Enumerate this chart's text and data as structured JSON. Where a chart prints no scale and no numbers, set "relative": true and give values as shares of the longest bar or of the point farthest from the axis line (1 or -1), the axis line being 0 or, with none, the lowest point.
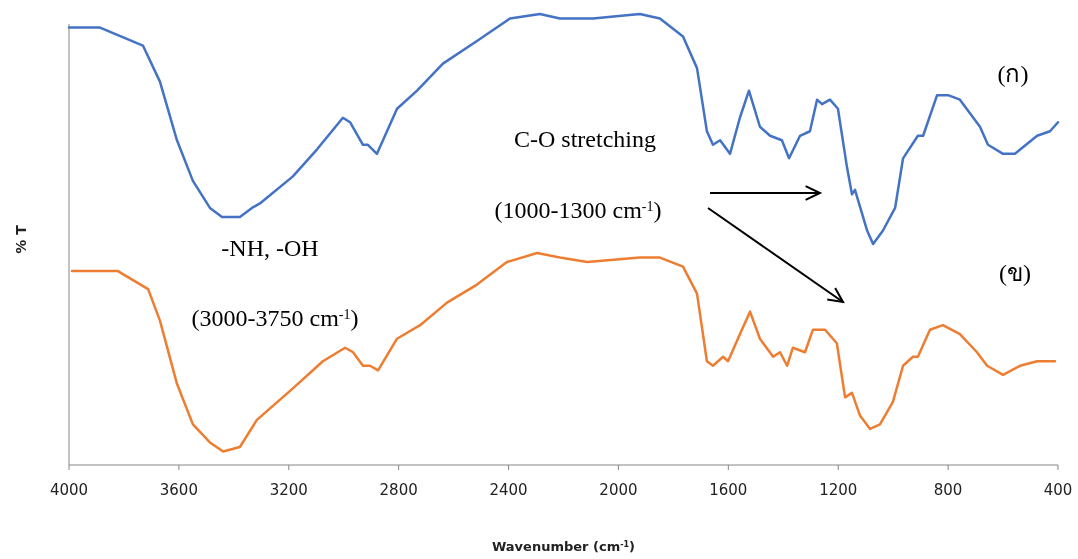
{
  "chart_data": {
    "type": "line",
    "relative": true,
    "xlabel": "Wavenumber (cm$^{-1}$)",
    "ylabel": "% T",
    "xlim": [
      4000,
      400
    ],
    "xticks": [
      4000,
      3600,
      3200,
      2800,
      2400,
      2000,
      1600,
      1200,
      800,
      400
    ],
    "grid": false,
    "marker": "none",
    "line_style": "solid",
    "annotations": [
      "C-O stretching",
      "(1000-1300 cm$^{-1}$)",
      "-NH, -OH",
      "(3000-3750 cm$^{-1}$)"
    ],
    "series": [
      {
        "name": "(ก)",
        "color": "#4472c4",
        "x": [
          4000,
          3887,
          3731,
          3669,
          3607,
          3549,
          3487,
          3443,
          3378,
          3334,
          3305,
          3185,
          3097,
          3003,
          2977,
          2930,
          2912,
          2879,
          2806,
          2733,
          2639,
          2515,
          2395,
          2286,
          2213,
          2093,
          1922,
          1849,
          1765,
          1714,
          1678,
          1656,
          1630,
          1594,
          1558,
          1525,
          1485,
          1448,
          1405,
          1379,
          1339,
          1303,
          1277,
          1259,
          1230,
          1201,
          1168,
          1150,
          1139,
          1095,
          1073,
          1037,
          993,
          964,
          910,
          891,
          840,
          800,
          757,
          684,
          655,
          600,
          557,
          476,
          429,
          400
        ],
        "values": [
          0.97,
          0.97,
          0.93,
          0.85,
          0.72,
          0.63,
          0.57,
          0.55,
          0.55,
          0.57,
          0.58,
          0.64,
          0.7,
          0.77,
          0.76,
          0.71,
          0.71,
          0.69,
          0.79,
          0.83,
          0.89,
          0.94,
          0.99,
          1.0,
          0.99,
          0.99,
          1.0,
          0.99,
          0.95,
          0.88,
          0.74,
          0.71,
          0.72,
          0.69,
          0.77,
          0.83,
          0.75,
          0.73,
          0.72,
          0.68,
          0.73,
          0.74,
          0.81,
          0.8,
          0.81,
          0.79,
          0.66,
          0.6,
          0.61,
          0.52,
          0.49,
          0.52,
          0.57,
          0.68,
          0.73,
          0.73,
          0.82,
          0.82,
          0.81,
          0.75,
          0.71,
          0.69,
          0.69,
          0.73,
          0.74,
          0.76
        ]
      },
      {
        "name": "(ข)",
        "color": "#ed7d31",
        "x": [
          3989,
          3822,
          3712,
          3669,
          3607,
          3549,
          3487,
          3439,
          3378,
          3316,
          3185,
          3076,
          2995,
          2966,
          2930,
          2904,
          2875,
          2806,
          2722,
          2624,
          2515,
          2406,
          2296,
          2213,
          2114,
          1922,
          1849,
          1765,
          1714,
          1678,
          1656,
          1619,
          1601,
          1558,
          1521,
          1485,
          1437,
          1412,
          1386,
          1365,
          1321,
          1292,
          1248,
          1205,
          1175,
          1150,
          1121,
          1084,
          1048,
          1001,
          964,
          928,
          910,
          866,
          819,
          757,
          695,
          658,
          600,
          538,
          476,
          411
        ],
        "values": [
          0.43,
          0.43,
          0.39,
          0.32,
          0.18,
          0.09,
          0.05,
          0.03,
          0.04,
          0.1,
          0.17,
          0.23,
          0.26,
          0.25,
          0.22,
          0.22,
          0.21,
          0.28,
          0.31,
          0.36,
          0.4,
          0.45,
          0.47,
          0.46,
          0.45,
          0.46,
          0.46,
          0.44,
          0.38,
          0.23,
          0.22,
          0.24,
          0.23,
          0.29,
          0.34,
          0.28,
          0.24,
          0.25,
          0.22,
          0.26,
          0.25,
          0.3,
          0.3,
          0.27,
          0.15,
          0.16,
          0.11,
          0.08,
          0.09,
          0.14,
          0.22,
          0.24,
          0.24,
          0.3,
          0.31,
          0.29,
          0.25,
          0.22,
          0.2,
          0.22,
          0.23,
          0.23
        ]
      }
    ]
  }
}
